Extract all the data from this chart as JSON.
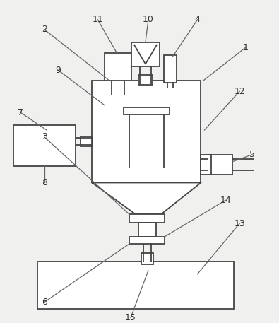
{
  "bg_color": "#f0f0ee",
  "line_color": "#444444",
  "line_width": 1.3,
  "label_fontsize": 9,
  "label_color": "#333333",
  "leader_color": "#666666",
  "leader_lw": 0.9,
  "fill_color": "#ffffff",
  "fill_inner": "#e8e8e8"
}
